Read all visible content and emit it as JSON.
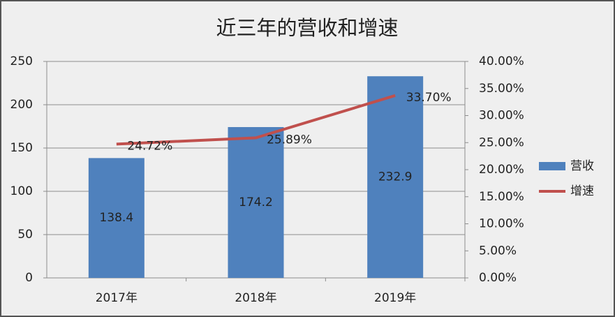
{
  "chart_data": {
    "type": "bar",
    "title": "近三年的营收和增速",
    "categories": [
      "2017年",
      "2018年",
      "2019年"
    ],
    "series": [
      {
        "name": "营收",
        "type": "bar",
        "color": "#4f81bd",
        "values": [
          138.4,
          174.2,
          232.9
        ]
      },
      {
        "name": "增速",
        "type": "line",
        "axis": "y2",
        "color": "#c0504d",
        "values": [
          24.72,
          25.89,
          33.7
        ],
        "value_labels": [
          "24.72%",
          "25.89%",
          "33.70%"
        ]
      }
    ],
    "ylim": [
      0,
      250
    ],
    "yticks": [
      0,
      50,
      100,
      150,
      200,
      250
    ],
    "y2lim": [
      0,
      40
    ],
    "y2ticks": [
      {
        "value": 0,
        "label": "0.00%"
      },
      {
        "value": 5,
        "label": "5.00%"
      },
      {
        "value": 10,
        "label": "10.00%"
      },
      {
        "value": 15,
        "label": "15.00%"
      },
      {
        "value": 20,
        "label": "20.00%"
      },
      {
        "value": 25,
        "label": "25.00%"
      },
      {
        "value": 30,
        "label": "30.00%"
      },
      {
        "value": 35,
        "label": "35.00%"
      },
      {
        "value": 40,
        "label": "40.00%"
      }
    ],
    "grid": true,
    "legend": "right"
  }
}
